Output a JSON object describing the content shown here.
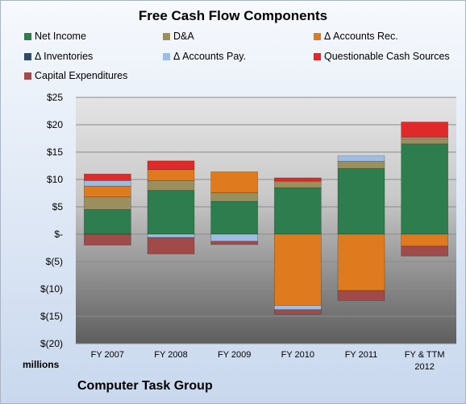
{
  "chart_data": {
    "type": "bar",
    "stacked": true,
    "title": "Free Cash Flow Components",
    "unit_label": "millions",
    "company": "Computer Task Group",
    "categories": [
      "FY 2007",
      "FY 2008",
      "FY 2009",
      "FY 2010",
      "FY 2011",
      "FY & TTM 2012"
    ],
    "category_lines": [
      [
        "FY 2007"
      ],
      [
        "FY 2008"
      ],
      [
        "FY 2009"
      ],
      [
        "FY 2010"
      ],
      [
        "FY 2011"
      ],
      [
        "FY & TTM",
        "2012"
      ]
    ],
    "ylim": [
      -20,
      25
    ],
    "yticks": [
      {
        "value": 25,
        "label": "$25"
      },
      {
        "value": 20,
        "label": "$20"
      },
      {
        "value": 15,
        "label": "$15"
      },
      {
        "value": 10,
        "label": "$10"
      },
      {
        "value": 5,
        "label": "$5"
      },
      {
        "value": 0,
        "label": "$-"
      },
      {
        "value": -5,
        "label": "$(5)"
      },
      {
        "value": -10,
        "label": "$(10)"
      },
      {
        "value": -15,
        "label": "$(15)"
      },
      {
        "value": -20,
        "label": "$(20)"
      }
    ],
    "grid": true,
    "legend_position": "top",
    "series": [
      {
        "name": "Net Income",
        "color": "#2e7d4f",
        "values": [
          4.5,
          8.0,
          6.0,
          8.5,
          12.0,
          16.5
        ]
      },
      {
        "name": "D&A",
        "color": "#9c8f5e",
        "values": [
          2.3,
          1.8,
          1.6,
          1.2,
          1.3,
          1.0
        ]
      },
      {
        "name": "Δ Accounts Rec.",
        "color": "#e07a1e",
        "values": [
          2.0,
          2.0,
          3.8,
          -13.0,
          -10.3,
          -2.2
        ]
      },
      {
        "name": "Δ Inventories",
        "color": "#2f4a66",
        "values": [
          0,
          0,
          0,
          0,
          0,
          0
        ]
      },
      {
        "name": "Δ Accounts Pay.",
        "color": "#9fbde3",
        "values": [
          1.0,
          -0.6,
          -1.3,
          -0.8,
          1.0,
          0.2
        ]
      },
      {
        "name": "Questionable Cash Sources",
        "color": "#e02a2a",
        "values": [
          1.2,
          1.6,
          0,
          0.6,
          0,
          2.8
        ]
      },
      {
        "name": "Capital Expenditures",
        "color": "#a14a4a",
        "values": [
          -2.0,
          -3.0,
          -0.6,
          -0.8,
          -1.8,
          -1.8
        ]
      }
    ]
  }
}
